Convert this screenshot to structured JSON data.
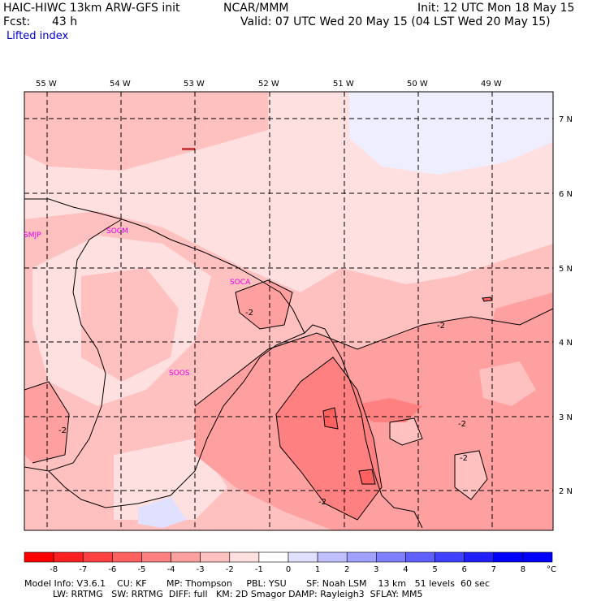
{
  "header": {
    "model": "HAIC-HIWC 13km ARW-GFS init",
    "org": "NCAR/MMM",
    "init": "Init: 12 UTC Mon 18 May 15",
    "fcst_label": "Fcst:",
    "fcst_value": "43 h",
    "valid": "Valid: 07 UTC Wed 20 May 15 (04 LST Wed 20 May 15)",
    "field": "Lifted index"
  },
  "map": {
    "lon_labels": [
      "55 W",
      "54 W",
      "53 W",
      "52 W",
      "51 W",
      "50 W",
      "49 W"
    ],
    "lat_labels": [
      "7 N",
      "6 N",
      "5 N",
      "4 N",
      "3 N",
      "2 N"
    ],
    "stations": [
      "SMJP",
      "SOCM",
      "SOCA",
      "SOOS"
    ],
    "contour_label": "-2"
  },
  "colorbar": {
    "ticks": [
      "-8",
      "-7",
      "-6",
      "-5",
      "-4",
      "-3",
      "-2",
      "-1",
      "0",
      "1",
      "2",
      "3",
      "4",
      "5",
      "6",
      "7",
      "8"
    ],
    "unit": "°C",
    "colors": [
      "#ff0000",
      "#ff2020",
      "#ff4040",
      "#ff6060",
      "#ff8080",
      "#ffa0a0",
      "#ffc0c0",
      "#ffe0e0",
      "#ffffff",
      "#e0e0ff",
      "#c0c0ff",
      "#a0a0ff",
      "#8080ff",
      "#6060ff",
      "#4040ff",
      "#2020ff",
      "#0000ff"
    ]
  },
  "footer": {
    "line1": "Model Info: V3.6.1    CU: KF       MP: Thompson     PBL: YSU       SF: Noah LSM    13 km   51 levels  60 sec",
    "line2": "          LW: RRTMG   SW: RRTMG  DIFF: full   KM: 2D Smagor DAMP: Rayleigh3  SFLAY: MM5"
  }
}
